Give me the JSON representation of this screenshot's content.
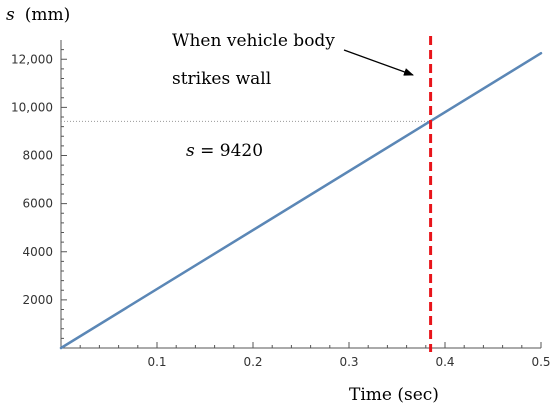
{
  "chart_data": {
    "type": "line",
    "ylabel_symbol": "s",
    "ylabel_unit": "(mm)",
    "xlabel": "Time (sec)",
    "xlim": [
      0,
      0.5
    ],
    "ylim": [
      0,
      12800
    ],
    "xticks": [
      {
        "value": 0.1,
        "label": "0.1"
      },
      {
        "value": 0.2,
        "label": "0.2"
      },
      {
        "value": 0.3,
        "label": "0.3"
      },
      {
        "value": 0.4,
        "label": "0.4"
      },
      {
        "value": 0.5,
        "label": "0.5"
      }
    ],
    "yticks": [
      {
        "value": 2000,
        "label": "2000"
      },
      {
        "value": 4000,
        "label": "4000"
      },
      {
        "value": 6000,
        "label": "6000"
      },
      {
        "value": 8000,
        "label": "8000"
      },
      {
        "value": 10000,
        "label": "10,000"
      },
      {
        "value": 12000,
        "label": "12,000"
      }
    ],
    "series": [
      {
        "color": "#5b87b6",
        "points": [
          [
            0,
            0
          ],
          [
            0.5,
            12250
          ]
        ]
      }
    ],
    "impact_line": {
      "x": 0.385,
      "color": "#e8141a"
    },
    "reference_line": {
      "y": 9420,
      "color": "#999999"
    },
    "annotations": {
      "impact_line1": "When  vehicle  body",
      "impact_line2": "strikes wall",
      "s_value_symbol": "s",
      "s_value_text": " = 9420"
    },
    "grid": false
  }
}
